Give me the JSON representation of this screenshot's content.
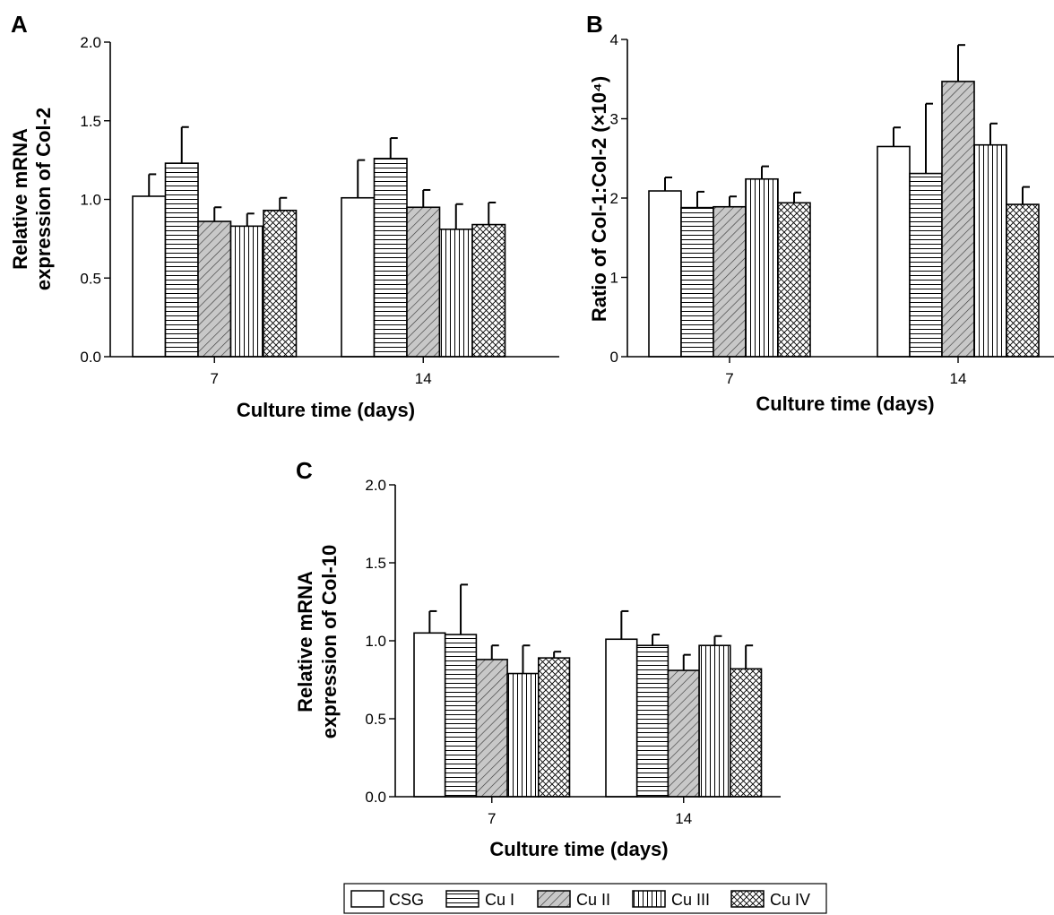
{
  "figure": {
    "legend": {
      "items": [
        {
          "label": "CSG",
          "pattern": "open"
        },
        {
          "label": "Cu I",
          "pattern": "horizontal"
        },
        {
          "label": "Cu II",
          "pattern": "diagonal"
        },
        {
          "label": "Cu III",
          "pattern": "vertical"
        },
        {
          "label": "Cu IV",
          "pattern": "crosshatch"
        }
      ],
      "placement": "bottom-center"
    }
  },
  "chart_data": [
    {
      "panel": "A",
      "type": "bar",
      "categories": [
        "7",
        "14"
      ],
      "xlabel": "Culture time (days)",
      "ylabel": [
        "Relative mRNA",
        "expression of Col-2"
      ],
      "ylim": [
        0,
        2.0
      ],
      "yticks": [
        "0.0",
        "0.5",
        "1.0",
        "1.5",
        "2.0"
      ],
      "grid": false,
      "series": [
        {
          "name": "CSG",
          "values": [
            1.02,
            1.01
          ],
          "errors": [
            0.14,
            0.24
          ]
        },
        {
          "name": "Cu I",
          "values": [
            1.23,
            1.26
          ],
          "errors": [
            0.23,
            0.13
          ]
        },
        {
          "name": "Cu II",
          "values": [
            0.86,
            0.95
          ],
          "errors": [
            0.09,
            0.11
          ]
        },
        {
          "name": "Cu III",
          "values": [
            0.83,
            0.81
          ],
          "errors": [
            0.08,
            0.16
          ]
        },
        {
          "name": "Cu IV",
          "values": [
            0.93,
            0.84
          ],
          "errors": [
            0.08,
            0.14
          ]
        }
      ]
    },
    {
      "panel": "B",
      "type": "bar",
      "categories": [
        "7",
        "14"
      ],
      "xlabel": "Culture time (days)",
      "ylabel": [
        "Ratio of Col-1:Col-2 (×10⁴)"
      ],
      "ylim": [
        0,
        4
      ],
      "yticks": [
        "0",
        "1",
        "2",
        "3",
        "4"
      ],
      "grid": false,
      "series": [
        {
          "name": "CSG",
          "values": [
            2.09,
            2.65
          ],
          "errors": [
            0.17,
            0.24
          ]
        },
        {
          "name": "Cu I",
          "values": [
            1.88,
            2.31
          ],
          "errors": [
            0.2,
            0.88
          ]
        },
        {
          "name": "Cu II",
          "values": [
            1.89,
            3.47
          ],
          "errors": [
            0.13,
            0.46
          ]
        },
        {
          "name": "Cu III",
          "values": [
            2.24,
            2.67
          ],
          "errors": [
            0.16,
            0.27
          ]
        },
        {
          "name": "Cu IV",
          "values": [
            1.94,
            1.92
          ],
          "errors": [
            0.13,
            0.22
          ]
        }
      ]
    },
    {
      "panel": "C",
      "type": "bar",
      "categories": [
        "7",
        "14"
      ],
      "xlabel": "Culture time (days)",
      "ylabel": [
        "Relative mRNA",
        "expression of Col-10"
      ],
      "ylim": [
        0,
        2.0
      ],
      "yticks": [
        "0.0",
        "0.5",
        "1.0",
        "1.5",
        "2.0"
      ],
      "grid": false,
      "series": [
        {
          "name": "CSG",
          "values": [
            1.05,
            1.01
          ],
          "errors": [
            0.14,
            0.18
          ]
        },
        {
          "name": "Cu I",
          "values": [
            1.04,
            0.97
          ],
          "errors": [
            0.32,
            0.07
          ]
        },
        {
          "name": "Cu II",
          "values": [
            0.88,
            0.81
          ],
          "errors": [
            0.09,
            0.1
          ]
        },
        {
          "name": "Cu III",
          "values": [
            0.79,
            0.97
          ],
          "errors": [
            0.18,
            0.06
          ]
        },
        {
          "name": "Cu IV",
          "values": [
            0.89,
            0.82
          ],
          "errors": [
            0.04,
            0.15
          ]
        }
      ]
    }
  ]
}
